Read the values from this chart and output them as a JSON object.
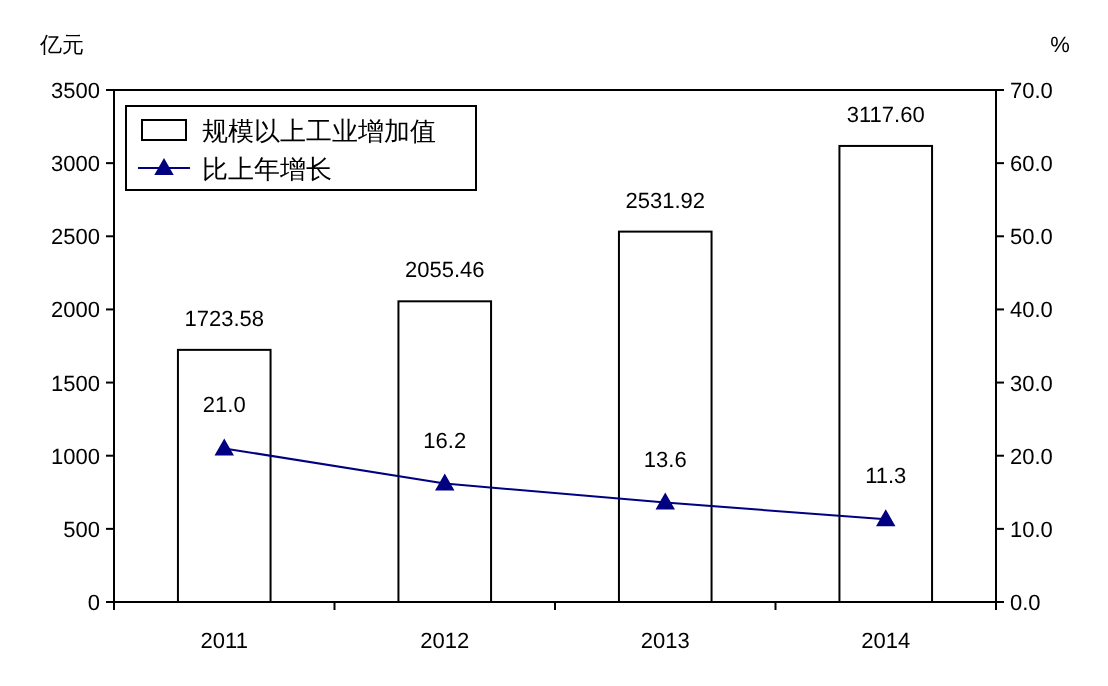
{
  "chart_data": {
    "type": "bar",
    "ylabel": "亿元",
    "y2label": "%",
    "categories": [
      "2011",
      "2012",
      "2013",
      "2014"
    ],
    "series": [
      {
        "name": "规模以上工业增加值",
        "color": "#ffffff",
        "values": [
          1723.58,
          2055.46,
          2531.92,
          3117.6
        ],
        "value_labels": [
          "1723.58",
          "2055.46",
          "2531.92",
          "3117.60"
        ]
      },
      {
        "name": "比上年增长",
        "type": "line",
        "axis": "y2",
        "color": "#000080",
        "marker": "triangle",
        "values": [
          21.0,
          16.2,
          13.6,
          11.3
        ],
        "value_labels": [
          "21.0",
          "16.2",
          "13.6",
          "11.3"
        ]
      }
    ],
    "ylim": [
      0,
      3500
    ],
    "yticks": [
      0,
      500,
      1000,
      1500,
      2000,
      2500,
      3000,
      3500
    ],
    "y2lim": [
      0,
      70
    ],
    "y2ticks": [
      {
        "value": 0,
        "label": "0.0"
      },
      {
        "value": 10,
        "label": "10.0"
      },
      {
        "value": 20,
        "label": "20.0"
      },
      {
        "value": 30,
        "label": "30.0"
      },
      {
        "value": 40,
        "label": "40.0"
      },
      {
        "value": 50,
        "label": "50.0"
      },
      {
        "value": 60,
        "label": "60.0"
      },
      {
        "value": 70,
        "label": "70.0"
      }
    ],
    "legend": "top left",
    "grid": false
  }
}
